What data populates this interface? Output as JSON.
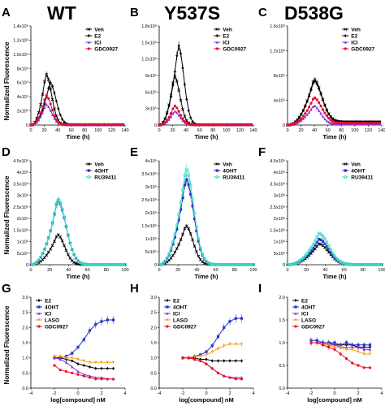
{
  "column_titles": [
    "WT",
    "Y537S",
    "D538G"
  ],
  "panel_letters": [
    "A",
    "B",
    "C",
    "D",
    "E",
    "F",
    "G",
    "H",
    "I"
  ],
  "row_ylabels": [
    "Normalized Fluorescence",
    "Normalized Fluorescence",
    "Normalized Fluorescence"
  ],
  "colors": {
    "Veh": "#000000",
    "E2": "#000000",
    "ICI": "#8a2be2",
    "GDC0927": "#e8102a",
    "4OHT": "#2233cc",
    "RU39411": "#40e0c0",
    "LASO": "#f5a020"
  },
  "chart_data": [
    {
      "panel": "A",
      "type": "line",
      "xlabel": "Time (h)",
      "ylabel": "",
      "xlim": [
        0,
        140
      ],
      "ylim": [
        0,
        1400000
      ],
      "xticks": [
        0,
        20,
        40,
        60,
        80,
        100,
        120,
        140
      ],
      "yticks": [
        "0",
        "2x10⁵",
        "4x10⁵",
        "6x10⁵",
        "8x10⁵",
        "1.0x10⁶",
        "1.2x10⁶",
        "1.4x10⁶"
      ],
      "series": [
        {
          "name": "Veh",
          "peak_x": 22,
          "peak_y": 720000,
          "spread": 12,
          "tail": 5000
        },
        {
          "name": "E2",
          "peak_x": 28,
          "peak_y": 600000,
          "spread": 13,
          "tail": 5000
        },
        {
          "name": "ICI",
          "peak_x": 22,
          "peak_y": 290000,
          "spread": 12,
          "tail": 3000
        },
        {
          "name": "GDC0927",
          "peak_x": 22,
          "peak_y": 420000,
          "spread": 12,
          "tail": 4000
        }
      ]
    },
    {
      "panel": "B",
      "type": "line",
      "xlabel": "Time (h)",
      "ylabel": "",
      "xlim": [
        0,
        140
      ],
      "ylim": [
        0,
        1800000
      ],
      "xticks": [
        0,
        20,
        40,
        60,
        80,
        100,
        120,
        140
      ],
      "yticks": [
        "0",
        "3x10⁵",
        "6x10⁵",
        "9x10⁵",
        "1.2x10⁶",
        "1.5x10⁶",
        "1.8x10⁶"
      ],
      "series": [
        {
          "name": "Veh",
          "peak_x": 22,
          "peak_y": 900000,
          "spread": 12,
          "tail": 5000
        },
        {
          "name": "E2",
          "peak_x": 28,
          "peak_y": 1450000,
          "spread": 12,
          "tail": 5000
        },
        {
          "name": "ICI",
          "peak_x": 22,
          "peak_y": 250000,
          "spread": 12,
          "tail": 3000
        },
        {
          "name": "GDC0927",
          "peak_x": 22,
          "peak_y": 350000,
          "spread": 12,
          "tail": 4000
        }
      ]
    },
    {
      "panel": "C",
      "type": "line",
      "xlabel": "Time (h)",
      "ylabel": "",
      "xlim": [
        0,
        140
      ],
      "ylim": [
        0,
        1600000
      ],
      "xticks": [
        0,
        20,
        40,
        60,
        80,
        100,
        120,
        140
      ],
      "yticks": [
        "0",
        "4x10⁵",
        "8x10⁵",
        "1.2x10⁶",
        "1.6x10⁶"
      ],
      "series": [
        {
          "name": "Veh",
          "peak_x": 38,
          "peak_y": 700000,
          "spread": 18,
          "tail": 50000
        },
        {
          "name": "E2",
          "peak_x": 38,
          "peak_y": 680000,
          "spread": 18,
          "tail": 50000
        },
        {
          "name": "ICI",
          "peak_x": 38,
          "peak_y": 300000,
          "spread": 15,
          "tail": 20000
        },
        {
          "name": "GDC0927",
          "peak_x": 38,
          "peak_y": 420000,
          "spread": 18,
          "tail": 30000
        }
      ]
    },
    {
      "panel": "D",
      "type": "line",
      "xlabel": "Time (h)",
      "ylabel": "",
      "xlim": [
        0,
        100
      ],
      "ylim": [
        0,
        4500000
      ],
      "xticks": [
        0,
        20,
        40,
        60,
        80,
        100
      ],
      "yticks": [
        "0",
        "5x10⁵",
        "1x10⁶",
        "1.5x10⁶",
        "2x10⁶",
        "2.5x10⁶",
        "3x10⁶",
        "3.5x10⁶",
        "4x10⁶",
        "4.5x10⁶"
      ],
      "series": [
        {
          "name": "Veh",
          "peak_x": 28,
          "peak_y": 1300000,
          "spread": 11,
          "tail": 5000
        },
        {
          "name": "4OHT",
          "peak_x": 28,
          "peak_y": 2800000,
          "spread": 13,
          "tail": 5000
        },
        {
          "name": "RU39411",
          "peak_x": 28,
          "peak_y": 2850000,
          "spread": 13,
          "tail": 5000
        }
      ]
    },
    {
      "panel": "E",
      "type": "line",
      "xlabel": "Time (h)",
      "ylabel": "",
      "xlim": [
        0,
        100
      ],
      "ylim": [
        0,
        4000000
      ],
      "xticks": [
        0,
        20,
        40,
        60,
        80,
        100
      ],
      "yticks": [
        "0",
        "5x10⁵",
        "1x10⁶",
        "1.5x10⁶",
        "2x10⁶",
        "2.5x10⁶",
        "3x10⁶",
        "3.5x10⁶",
        "4x10⁶"
      ],
      "series": [
        {
          "name": "Veh",
          "peak_x": 28,
          "peak_y": 1500000,
          "spread": 11,
          "tail": 5000
        },
        {
          "name": "4OHT",
          "peak_x": 28,
          "peak_y": 3300000,
          "spread": 12,
          "tail": 5000
        },
        {
          "name": "RU39411",
          "peak_x": 28,
          "peak_y": 3700000,
          "spread": 12,
          "tail": 5000
        }
      ]
    },
    {
      "panel": "F",
      "type": "line",
      "xlabel": "Time (h)",
      "ylabel": "",
      "xlim": [
        0,
        100
      ],
      "ylim": [
        0,
        4500000
      ],
      "xticks": [
        0,
        20,
        40,
        60,
        80,
        100
      ],
      "yticks": [
        "0",
        "5x10⁵",
        "1x10⁶",
        "1.5x10⁶",
        "2x10⁶",
        "2.5x10⁶",
        "3x10⁶",
        "3.5x10⁶",
        "4x10⁶",
        "4.5x10⁶"
      ],
      "series": [
        {
          "name": "Veh",
          "peak_x": 33,
          "peak_y": 900000,
          "spread": 15,
          "tail": 5000
        },
        {
          "name": "4OHT",
          "peak_x": 33,
          "peak_y": 1100000,
          "spread": 15,
          "tail": 5000
        },
        {
          "name": "RU39411",
          "peak_x": 33,
          "peak_y": 1350000,
          "spread": 15,
          "tail": 5000
        }
      ]
    },
    {
      "panel": "G",
      "type": "line",
      "xlabel": "log[compound] nM",
      "ylabel": "",
      "xlim": [
        -4,
        4
      ],
      "ylim": [
        0,
        3.0
      ],
      "xticks": [
        -4,
        -2,
        0,
        2,
        4
      ],
      "yticks": [
        "0.0",
        "0.5",
        "1.0",
        "1.5",
        "2.0",
        "2.5",
        "3.0"
      ],
      "x": [
        -2,
        -1.5,
        -1,
        -0.5,
        0,
        0.5,
        1,
        1.5,
        2,
        2.5,
        3
      ],
      "series": [
        {
          "name": "E2",
          "values": [
            1.0,
            1.0,
            0.95,
            0.9,
            0.8,
            0.75,
            0.7,
            0.65,
            0.65,
            0.65,
            0.65
          ]
        },
        {
          "name": "4OHT",
          "values": [
            1.0,
            1.0,
            1.05,
            1.15,
            1.35,
            1.6,
            1.9,
            2.1,
            2.2,
            2.25,
            2.25
          ]
        },
        {
          "name": "ICI",
          "values": [
            1.0,
            0.95,
            0.85,
            0.7,
            0.55,
            0.45,
            0.4,
            0.35,
            0.35,
            0.3,
            0.3
          ]
        },
        {
          "name": "LASO",
          "values": [
            1.05,
            1.05,
            1.0,
            1.0,
            0.95,
            0.9,
            0.85,
            0.85,
            0.85,
            0.85,
            0.85
          ]
        },
        {
          "name": "GDC0927",
          "values": [
            0.75,
            0.6,
            0.55,
            0.5,
            0.45,
            0.4,
            0.35,
            0.3,
            0.3,
            0.3,
            0.3
          ]
        }
      ]
    },
    {
      "panel": "H",
      "type": "line",
      "xlabel": "log[compound] nM",
      "ylabel": "",
      "xlim": [
        -4,
        4
      ],
      "ylim": [
        0,
        3.0
      ],
      "xticks": [
        -4,
        -2,
        0,
        2,
        4
      ],
      "yticks": [
        "0.0",
        "0.5",
        "1.0",
        "1.5",
        "2.0",
        "2.5",
        "3.0"
      ],
      "x": [
        -2,
        -1.5,
        -1,
        -0.5,
        0,
        0.5,
        1,
        1.5,
        2,
        2.5,
        3
      ],
      "series": [
        {
          "name": "E2",
          "values": [
            1.0,
            1.0,
            1.0,
            0.95,
            0.95,
            0.9,
            0.9,
            0.9,
            0.9,
            0.9,
            0.9
          ]
        },
        {
          "name": "4OHT",
          "values": [
            1.0,
            1.0,
            1.05,
            1.1,
            1.2,
            1.4,
            1.7,
            2.0,
            2.2,
            2.3,
            2.3
          ]
        },
        {
          "name": "ICI",
          "values": [
            1.0,
            1.0,
            0.95,
            0.9,
            0.8,
            0.65,
            0.5,
            0.4,
            0.35,
            0.35,
            0.35
          ]
        },
        {
          "name": "LASO",
          "values": [
            1.0,
            1.0,
            1.05,
            1.05,
            1.1,
            1.2,
            1.3,
            1.4,
            1.45,
            1.45,
            1.45
          ]
        },
        {
          "name": "GDC0927",
          "values": [
            1.0,
            1.0,
            0.95,
            0.9,
            0.8,
            0.65,
            0.5,
            0.4,
            0.35,
            0.3,
            0.3
          ]
        }
      ]
    },
    {
      "panel": "I",
      "type": "line",
      "xlabel": "log[compound] nM",
      "ylabel": "",
      "xlim": [
        -4,
        4
      ],
      "ylim": [
        0,
        2.0
      ],
      "xticks": [
        -4,
        -2,
        0,
        2,
        4
      ],
      "yticks": [
        "0.0",
        "0.5",
        "1.0",
        "1.5",
        "2.0"
      ],
      "x": [
        -2,
        -1.5,
        -1,
        -0.5,
        0,
        0.5,
        1,
        1.5,
        2,
        2.5,
        3
      ],
      "series": [
        {
          "name": "E2",
          "values": [
            1.0,
            1.0,
            1.0,
            1.0,
            0.95,
            0.95,
            0.95,
            0.95,
            0.9,
            0.9,
            0.9
          ]
        },
        {
          "name": "4OHT",
          "values": [
            1.05,
            1.05,
            1.0,
            1.0,
            1.0,
            0.95,
            1.0,
            0.95,
            0.95,
            0.95,
            0.95
          ]
        },
        {
          "name": "ICI",
          "values": [
            1.0,
            1.0,
            1.0,
            0.95,
            0.95,
            0.9,
            0.9,
            0.9,
            0.9,
            0.85,
            0.85
          ]
        },
        {
          "name": "LASO",
          "values": [
            1.0,
            1.0,
            0.95,
            0.95,
            0.9,
            0.9,
            0.85,
            0.85,
            0.8,
            0.75,
            0.75
          ]
        },
        {
          "name": "GDC0927",
          "values": [
            1.0,
            1.0,
            0.95,
            0.9,
            0.85,
            0.75,
            0.65,
            0.55,
            0.5,
            0.45,
            0.45
          ]
        }
      ]
    }
  ]
}
